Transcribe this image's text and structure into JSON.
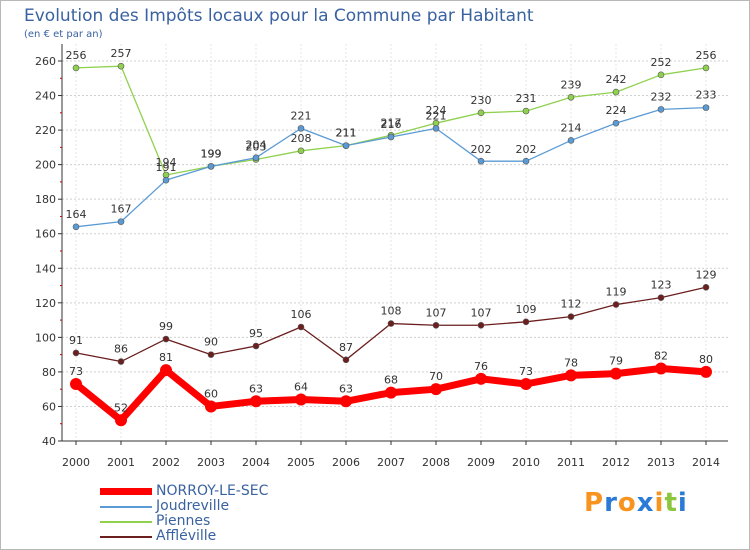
{
  "chart_data": {
    "type": "line",
    "title": "Evolution des Impôts locaux pour la Commune par Habitant",
    "subtitle": "(en € et par an)",
    "x": [
      "2000",
      "2001",
      "2002",
      "2003",
      "2004",
      "2005",
      "2006",
      "2007",
      "2008",
      "2009",
      "2010",
      "2011",
      "2012",
      "2013",
      "2014"
    ],
    "ylim": [
      40,
      260
    ],
    "yticks": [
      40,
      60,
      80,
      100,
      120,
      140,
      160,
      180,
      200,
      220,
      240,
      260
    ],
    "grid": "horizontal",
    "legend_position": "bottom-left",
    "series": [
      {
        "name": "NORROY-LE-SEC",
        "color": "#ff0000",
        "values": [
          73,
          52,
          81,
          60,
          63,
          64,
          63,
          68,
          70,
          76,
          73,
          78,
          79,
          82,
          80
        ]
      },
      {
        "name": "Joudreville",
        "color": "#5b9bd5",
        "values": [
          164,
          167,
          191,
          199,
          204,
          221,
          211,
          216,
          221,
          202,
          202,
          214,
          224,
          232,
          233
        ]
      },
      {
        "name": "Piennes",
        "color": "#8fd14f",
        "values": [
          256,
          257,
          194,
          199,
          203,
          208,
          211,
          217,
          224,
          230,
          231,
          239,
          242,
          252,
          256
        ]
      },
      {
        "name": "Affléville",
        "color": "#6b1f1f",
        "values": [
          91,
          86,
          99,
          90,
          95,
          106,
          87,
          108,
          107,
          107,
          109,
          112,
          119,
          123,
          129
        ]
      }
    ]
  },
  "logo": {
    "text": "Proxiti",
    "letter_colors": [
      "#f7931e",
      "#2b7bd6",
      "#f7931e",
      "#2b7bd6",
      "#f7931e",
      "#8cc63f",
      "#2b7bd6"
    ]
  }
}
